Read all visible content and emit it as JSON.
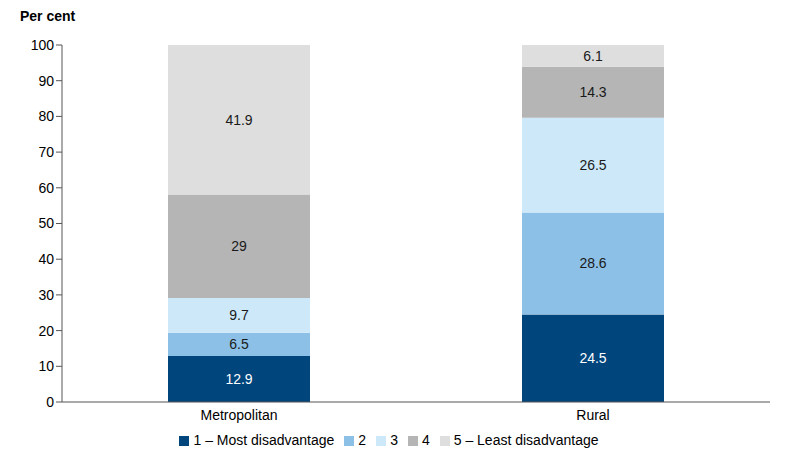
{
  "chart_data": {
    "type": "bar",
    "stacked": true,
    "y_label": "Per cent",
    "categories": [
      "Metropolitan",
      "Rural"
    ],
    "series": [
      {
        "name": "1 – Most disadvantage",
        "color": "#00457c",
        "values": [
          12.9,
          24.5
        ]
      },
      {
        "name": "2",
        "color": "#8cc0e6",
        "values": [
          6.5,
          28.6
        ]
      },
      {
        "name": "3",
        "color": "#cde9f9",
        "values": [
          9.7,
          26.5
        ]
      },
      {
        "name": "4",
        "color": "#b5b5b5",
        "values": [
          29,
          14.3
        ]
      },
      {
        "name": "5 – Least disadvantage",
        "color": "#dedede",
        "values": [
          41.9,
          6.1
        ]
      }
    ],
    "ylim": [
      0,
      100
    ],
    "yticks": [
      0,
      10,
      20,
      30,
      40,
      50,
      60,
      70,
      80,
      90,
      100
    ],
    "data_labels": true,
    "legend": "bottom",
    "grid": false
  }
}
